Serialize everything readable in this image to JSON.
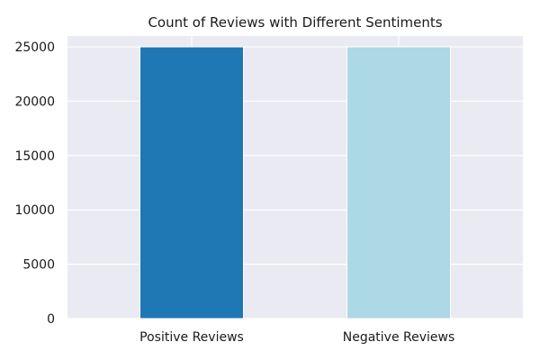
{
  "chart_data": {
    "type": "bar",
    "title": "Count of Reviews with Different Sentiments",
    "xlabel": "",
    "ylabel": "",
    "categories": [
      "Positive Reviews",
      "Negative Reviews"
    ],
    "values": [
      25000,
      25000
    ],
    "ylim": [
      0,
      26000
    ],
    "yticks": [
      0,
      5000,
      10000,
      15000,
      20000,
      25000
    ],
    "grid": true,
    "legend": "none",
    "colors": {
      "bars": [
        "#1f77b4",
        "#add8e6"
      ],
      "plot_background": "#eaeaf2",
      "grid": "#ffffff"
    }
  }
}
